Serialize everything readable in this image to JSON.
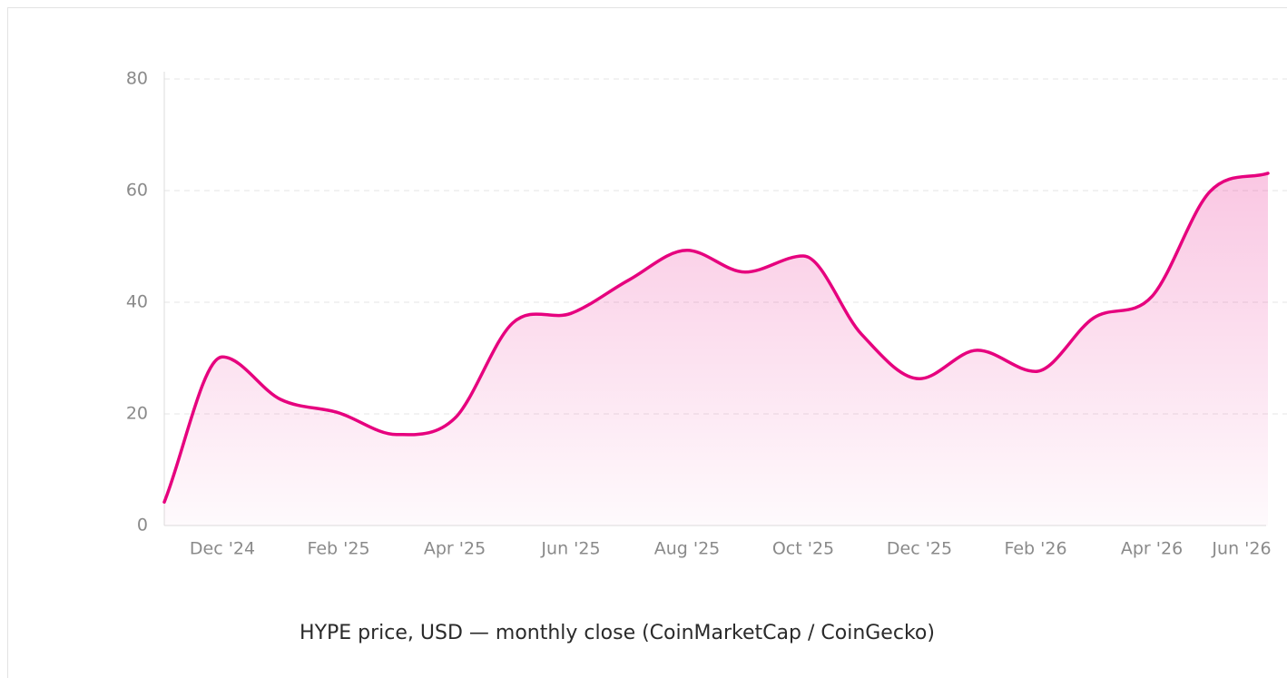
{
  "chart_data": {
    "type": "line",
    "caption": "HYPE price, USD — monthly close (CoinMarketCap / CoinGecko)",
    "categories": [
      null,
      "Dec '24",
      null,
      "Feb '25",
      null,
      "Apr '25",
      null,
      "Jun '25",
      null,
      "Aug '25",
      null,
      "Oct '25",
      null,
      "Dec '25",
      null,
      "Feb '26",
      null,
      "Apr '26",
      null,
      "Jun '26"
    ],
    "series": [
      {
        "color": "#e6007e",
        "values": [
          4.2,
          30.2,
          22.6,
          20.2,
          16.3,
          19.2,
          36.3,
          38.0,
          44.0,
          49.3,
          45.4,
          48.3,
          34.3,
          26.3,
          31.4,
          27.6,
          37.2,
          41.0,
          59.8,
          63.1
        ]
      }
    ],
    "ylim": [
      0,
      80
    ],
    "yticks": [
      0,
      20,
      40,
      60,
      80
    ],
    "grid": true
  }
}
